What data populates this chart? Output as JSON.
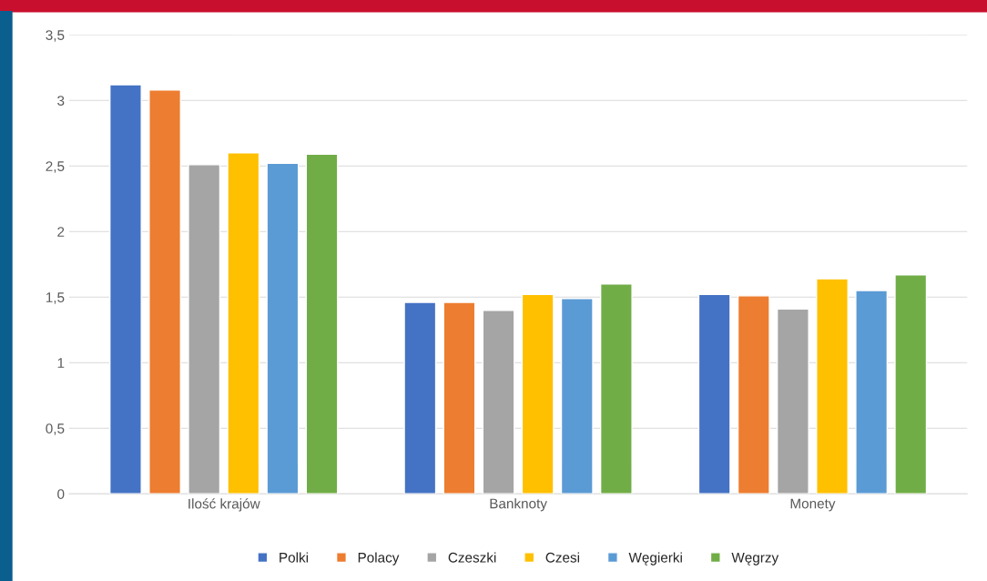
{
  "chart_data": {
    "type": "bar",
    "categories": [
      "Ilość krajów",
      "Banknoty",
      "Monety"
    ],
    "series": [
      {
        "name": "Polki",
        "color": "#4472c4",
        "values": [
          3.12,
          1.46,
          1.52
        ]
      },
      {
        "name": "Polacy",
        "color": "#ed7d31",
        "values": [
          3.08,
          1.46,
          1.51
        ]
      },
      {
        "name": "Czeszki",
        "color": "#a5a5a5",
        "values": [
          2.51,
          1.4,
          1.41
        ]
      },
      {
        "name": "Czesi",
        "color": "#ffc000",
        "values": [
          2.6,
          1.52,
          1.64
        ]
      },
      {
        "name": "Węgierki",
        "color": "#5b9bd5",
        "values": [
          2.52,
          1.49,
          1.55
        ]
      },
      {
        "name": "Węgrzy",
        "color": "#70ad47",
        "values": [
          2.59,
          1.6,
          1.67
        ]
      }
    ],
    "ylim": [
      0,
      3.5
    ],
    "yticks": [
      0,
      {
        "value": 0.5,
        "label": "0,5"
      },
      1,
      {
        "value": 1.5,
        "label": "1,5"
      },
      2,
      {
        "value": 2.5,
        "label": "2,5"
      },
      3,
      {
        "value": 3.5,
        "label": "3,5"
      }
    ],
    "grid": "y",
    "legend": "bottom"
  }
}
